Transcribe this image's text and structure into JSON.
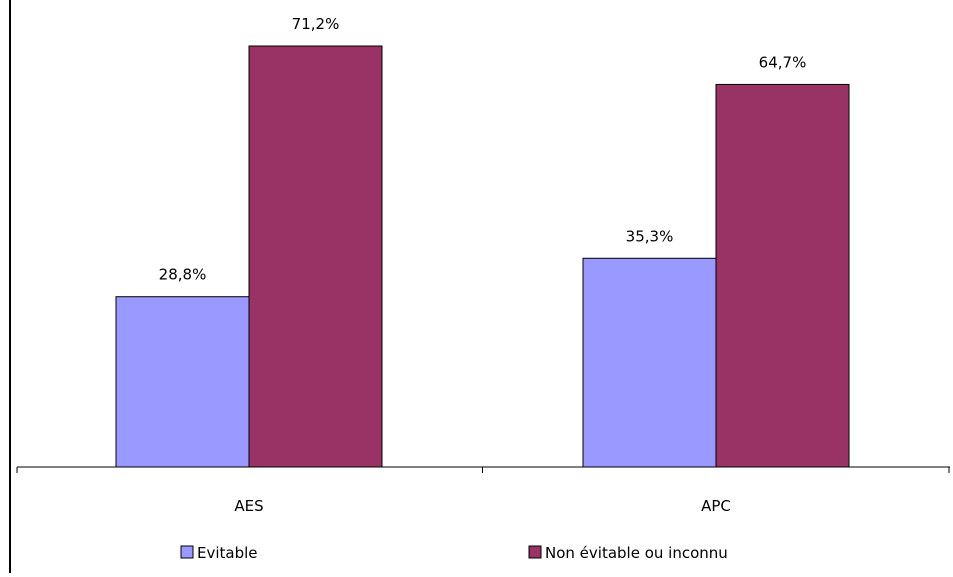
{
  "chart_data": {
    "type": "bar",
    "title": "",
    "xlabel": "",
    "ylabel": "",
    "ylim": [
      0,
      80
    ],
    "grid": false,
    "legend_position": "bottom",
    "categories": [
      "AES",
      "APC"
    ],
    "series": [
      {
        "name": "Evitable",
        "color": "#9999ff",
        "values": [
          28.8,
          35.3
        ],
        "labels": [
          "28,8%",
          "35,3%"
        ]
      },
      {
        "name": "Non évitable ou inconnu",
        "color": "#993366",
        "values": [
          71.2,
          64.7
        ],
        "labels": [
          "71,2%",
          "64,7%"
        ]
      }
    ]
  }
}
